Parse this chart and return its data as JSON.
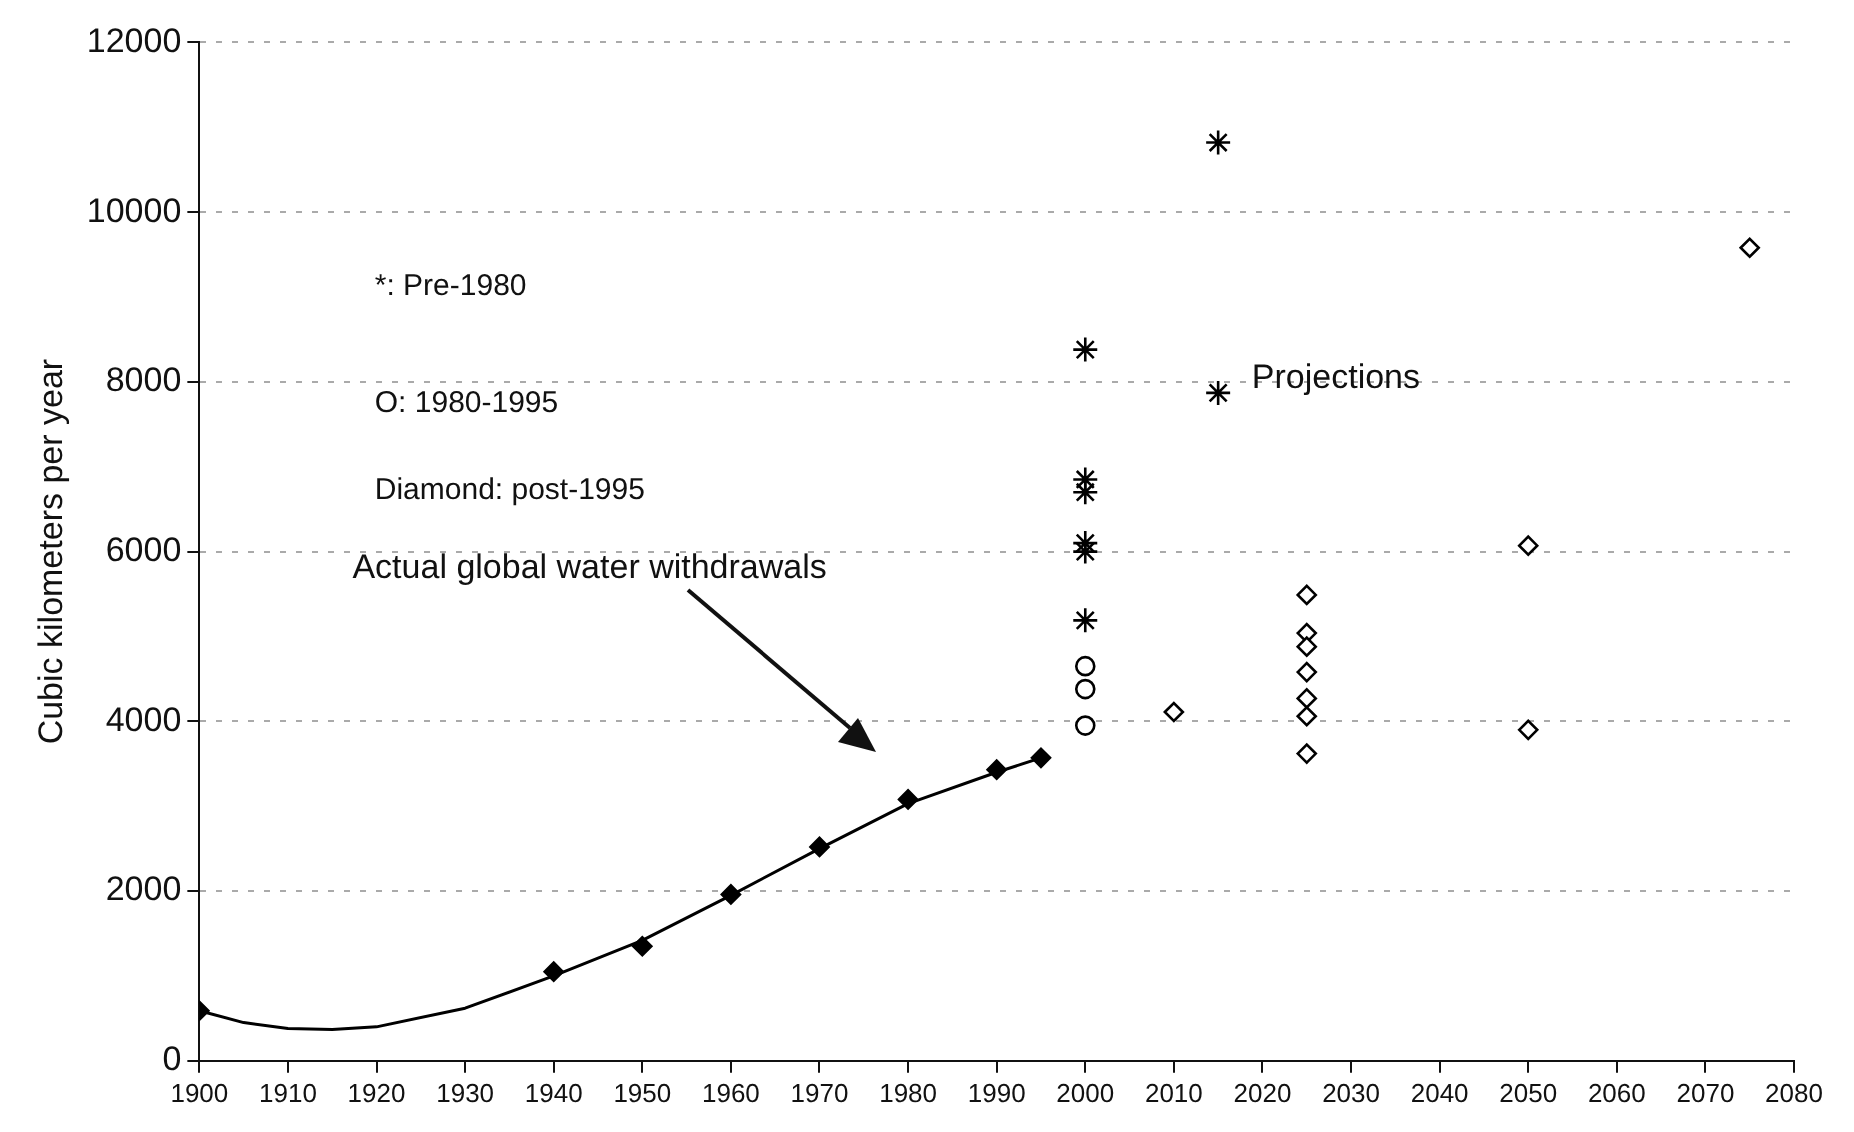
{
  "chart_data": {
    "type": "scatter",
    "ylabel": "Cubic kilometers per year",
    "xlim": [
      1900,
      2080
    ],
    "xticks": [
      1900,
      1910,
      1920,
      1930,
      1940,
      1950,
      1960,
      1970,
      1980,
      1990,
      2000,
      2010,
      2020,
      2030,
      2040,
      2050,
      2060,
      2070,
      2080
    ],
    "ylim": [
      0,
      12000
    ],
    "yticks": [
      0,
      2000,
      4000,
      6000,
      8000,
      10000,
      12000
    ],
    "grid": "y",
    "legend": false,
    "series": [
      {
        "type": "scatter",
        "marker": "diamond",
        "color": "#000000",
        "x": [
          1900,
          1940,
          1950,
          1960,
          1970,
          1980,
          1990,
          1995
        ],
        "values": [
          590,
          1050,
          1350,
          1960,
          2520,
          3080,
          3430,
          3570
        ]
      },
      {
        "type": "scatter",
        "marker": "cross",
        "color": "#000000",
        "x": [
          2000,
          2000,
          2000,
          2000,
          2000,
          2000,
          2015,
          2015
        ],
        "values": [
          8380,
          6850,
          6700,
          6100,
          6000,
          5190,
          10820,
          7870
        ]
      },
      {
        "type": "scatter",
        "marker": "circle",
        "color": "#000000",
        "x": [
          2000,
          2000,
          2000
        ],
        "values": [
          4650,
          4380,
          3950
        ]
      },
      {
        "type": "scatter",
        "marker": "diamond",
        "color": "#000000",
        "x": [
          2010,
          2025,
          2025,
          2025,
          2025,
          2025,
          2025,
          2025,
          2050,
          2050,
          2075
        ],
        "values": [
          4110,
          5490,
          5040,
          4880,
          4580,
          4270,
          4060,
          3620,
          6070,
          3900,
          9580
        ]
      },
      {
        "type": "line",
        "marker": "none",
        "line_style": "solid",
        "color": "#000000",
        "x": [
          1900,
          1905,
          1910,
          1915,
          1920,
          1930,
          1940,
          1950,
          1960,
          1970,
          1980,
          1990,
          1995
        ],
        "values": [
          590,
          450,
          380,
          370,
          400,
          620,
          1000,
          1420,
          1950,
          2500,
          3030,
          3400,
          3570
        ]
      }
    ],
    "annotations": [
      "*: Pre-1980",
      "O: 1980-1995",
      "Diamond: post-1995",
      "Projections",
      "Actual global water withdrawals"
    ]
  }
}
